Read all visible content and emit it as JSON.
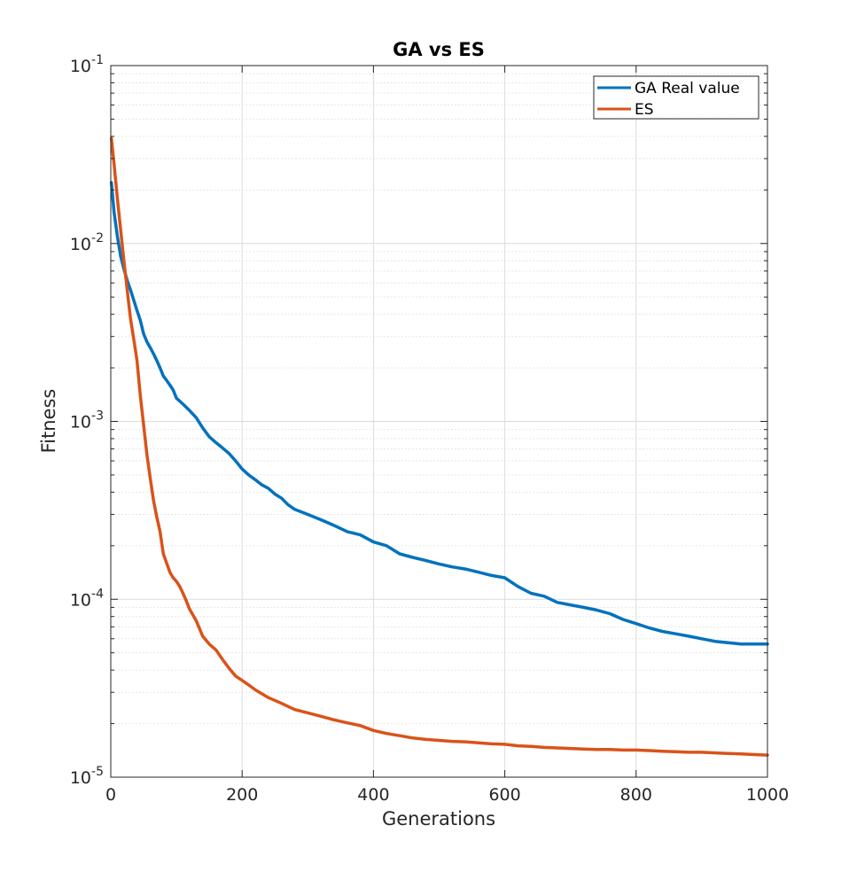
{
  "chart_data": {
    "type": "line",
    "title": "GA vs ES",
    "xlabel": "Generations",
    "ylabel": "Fitness",
    "xlim": [
      0,
      1000
    ],
    "ylim": [
      1e-05,
      0.1
    ],
    "yscale": "log",
    "grid": true,
    "legend_location": "top-right",
    "x_ticks": [
      0,
      200,
      400,
      600,
      800,
      1000
    ],
    "x_tick_labels": [
      "0",
      "200",
      "400",
      "600",
      "800",
      "1000"
    ],
    "y_ticks": [
      {
        "value": 1e-05,
        "base": "10",
        "exp": "-5"
      },
      {
        "value": 0.0001,
        "base": "10",
        "exp": "-4"
      },
      {
        "value": 0.001,
        "base": "10",
        "exp": "-3"
      },
      {
        "value": 0.01,
        "base": "10",
        "exp": "-2"
      },
      {
        "value": 0.1,
        "base": "10",
        "exp": "-1"
      }
    ],
    "series": [
      {
        "name": "GA Real value",
        "color": "#0072BD",
        "points": [
          [
            1,
            0.022
          ],
          [
            5,
            0.015
          ],
          [
            10,
            0.011
          ],
          [
            15,
            0.0085
          ],
          [
            20,
            0.0072
          ],
          [
            25,
            0.0062
          ],
          [
            30,
            0.0055
          ],
          [
            35,
            0.0048
          ],
          [
            40,
            0.0042
          ],
          [
            45,
            0.0037
          ],
          [
            50,
            0.0031
          ],
          [
            55,
            0.0028
          ],
          [
            60,
            0.0026
          ],
          [
            65,
            0.0024
          ],
          [
            70,
            0.0022
          ],
          [
            75,
            0.002
          ],
          [
            80,
            0.0018
          ],
          [
            85,
            0.0017
          ],
          [
            90,
            0.0016
          ],
          [
            95,
            0.0015
          ],
          [
            100,
            0.00135
          ],
          [
            110,
            0.00125
          ],
          [
            120,
            0.00115
          ],
          [
            130,
            0.00105
          ],
          [
            140,
            0.00092
          ],
          [
            150,
            0.00082
          ],
          [
            160,
            0.00076
          ],
          [
            170,
            0.00071
          ],
          [
            180,
            0.00066
          ],
          [
            190,
            0.0006
          ],
          [
            200,
            0.00054
          ],
          [
            210,
            0.0005
          ],
          [
            220,
            0.00047
          ],
          [
            230,
            0.00044
          ],
          [
            240,
            0.00042
          ],
          [
            250,
            0.00039
          ],
          [
            260,
            0.00037
          ],
          [
            270,
            0.00034
          ],
          [
            280,
            0.00032
          ],
          [
            290,
            0.00031
          ],
          [
            300,
            0.0003
          ],
          [
            320,
            0.00028
          ],
          [
            340,
            0.00026
          ],
          [
            360,
            0.00024
          ],
          [
            380,
            0.00023
          ],
          [
            400,
            0.00021
          ],
          [
            420,
            0.0002
          ],
          [
            440,
            0.00018
          ],
          [
            460,
            0.000172
          ],
          [
            480,
            0.000165
          ],
          [
            500,
            0.000158
          ],
          [
            520,
            0.000152
          ],
          [
            540,
            0.000148
          ],
          [
            560,
            0.000142
          ],
          [
            580,
            0.000136
          ],
          [
            600,
            0.000132
          ],
          [
            620,
            0.000118
          ],
          [
            640,
            0.000108
          ],
          [
            660,
            0.000104
          ],
          [
            680,
            9.6e-05
          ],
          [
            700,
            9.3e-05
          ],
          [
            720,
            9e-05
          ],
          [
            740,
            8.7e-05
          ],
          [
            760,
            8.3e-05
          ],
          [
            780,
            7.7e-05
          ],
          [
            800,
            7.3e-05
          ],
          [
            820,
            6.9e-05
          ],
          [
            840,
            6.6e-05
          ],
          [
            860,
            6.4e-05
          ],
          [
            880,
            6.2e-05
          ],
          [
            900,
            6e-05
          ],
          [
            920,
            5.8e-05
          ],
          [
            940,
            5.7e-05
          ],
          [
            960,
            5.6e-05
          ],
          [
            1000,
            5.6e-05
          ]
        ]
      },
      {
        "name": "ES",
        "color": "#D95319",
        "points": [
          [
            1,
            0.039
          ],
          [
            5,
            0.028
          ],
          [
            10,
            0.018
          ],
          [
            15,
            0.012
          ],
          [
            20,
            0.008
          ],
          [
            25,
            0.0055
          ],
          [
            30,
            0.0038
          ],
          [
            35,
            0.0029
          ],
          [
            40,
            0.0022
          ],
          [
            45,
            0.0014
          ],
          [
            50,
            0.00095
          ],
          [
            55,
            0.00065
          ],
          [
            60,
            0.00048
          ],
          [
            65,
            0.00036
          ],
          [
            70,
            0.00029
          ],
          [
            75,
            0.00024
          ],
          [
            80,
            0.00018
          ],
          [
            85,
            0.00016
          ],
          [
            90,
            0.000142
          ],
          [
            95,
            0.000132
          ],
          [
            100,
            0.000126
          ],
          [
            105,
            0.000118
          ],
          [
            110,
            0.000108
          ],
          [
            115,
            9.8e-05
          ],
          [
            120,
            8.8e-05
          ],
          [
            130,
            7.6e-05
          ],
          [
            140,
            6.2e-05
          ],
          [
            150,
            5.6e-05
          ],
          [
            160,
            5.2e-05
          ],
          [
            170,
            4.6e-05
          ],
          [
            180,
            4.1e-05
          ],
          [
            190,
            3.7e-05
          ],
          [
            200,
            3.5e-05
          ],
          [
            210,
            3.3e-05
          ],
          [
            220,
            3.1e-05
          ],
          [
            240,
            2.8e-05
          ],
          [
            260,
            2.6e-05
          ],
          [
            280,
            2.4e-05
          ],
          [
            300,
            2.3e-05
          ],
          [
            320,
            2.2e-05
          ],
          [
            340,
            2.1e-05
          ],
          [
            360,
            2.02e-05
          ],
          [
            380,
            1.95e-05
          ],
          [
            400,
            1.83e-05
          ],
          [
            420,
            1.76e-05
          ],
          [
            440,
            1.71e-05
          ],
          [
            460,
            1.66e-05
          ],
          [
            480,
            1.63e-05
          ],
          [
            500,
            1.61e-05
          ],
          [
            520,
            1.59e-05
          ],
          [
            540,
            1.58e-05
          ],
          [
            560,
            1.56e-05
          ],
          [
            580,
            1.54e-05
          ],
          [
            600,
            1.53e-05
          ],
          [
            620,
            1.5e-05
          ],
          [
            640,
            1.49e-05
          ],
          [
            660,
            1.47e-05
          ],
          [
            680,
            1.46e-05
          ],
          [
            700,
            1.45e-05
          ],
          [
            720,
            1.44e-05
          ],
          [
            740,
            1.43e-05
          ],
          [
            760,
            1.43e-05
          ],
          [
            780,
            1.42e-05
          ],
          [
            800,
            1.42e-05
          ],
          [
            820,
            1.41e-05
          ],
          [
            840,
            1.4e-05
          ],
          [
            860,
            1.39e-05
          ],
          [
            880,
            1.38e-05
          ],
          [
            900,
            1.38e-05
          ],
          [
            920,
            1.37e-05
          ],
          [
            940,
            1.36e-05
          ],
          [
            960,
            1.35e-05
          ],
          [
            980,
            1.34e-05
          ],
          [
            1000,
            1.33e-05
          ]
        ]
      }
    ]
  }
}
